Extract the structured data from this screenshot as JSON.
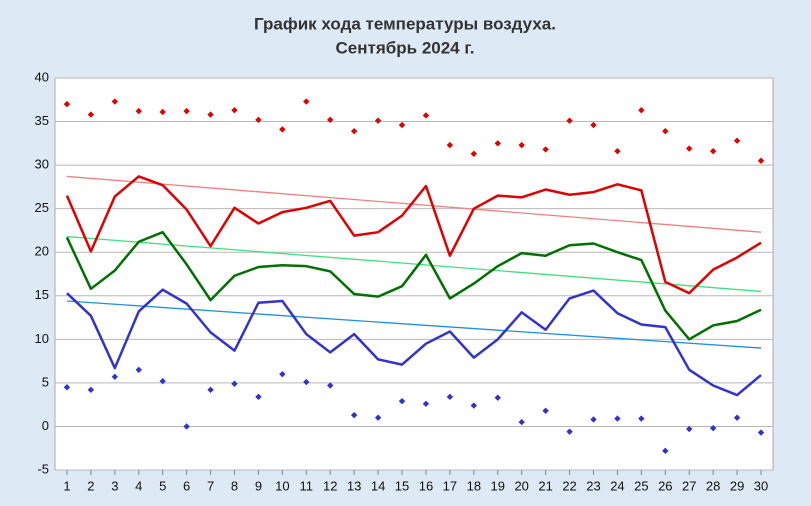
{
  "chart_data": {
    "type": "line",
    "title": [
      "График хода температуры воздуха.",
      "Сентябрь 2024 г."
    ],
    "x": [
      1,
      2,
      3,
      4,
      5,
      6,
      7,
      8,
      9,
      10,
      11,
      12,
      13,
      14,
      15,
      16,
      17,
      18,
      19,
      20,
      21,
      22,
      23,
      24,
      25,
      26,
      27,
      28,
      29,
      30
    ],
    "xlim": [
      0.5,
      30.5
    ],
    "ylim": [
      -5,
      40
    ],
    "yticks": [
      -5,
      0,
      5,
      10,
      15,
      20,
      25,
      30,
      35,
      40
    ],
    "grid": true,
    "series": [
      {
        "kind": "line",
        "color": "#e00000",
        "values": [
          26.5,
          20.1,
          26.4,
          28.7,
          27.7,
          24.9,
          20.7,
          25.1,
          23.3,
          24.6,
          25.1,
          25.9,
          21.9,
          22.3,
          24.2,
          27.6,
          19.6,
          25.0,
          26.5,
          26.3,
          27.2,
          26.6,
          26.9,
          27.8,
          27.1,
          16.6,
          15.3,
          18.0,
          19.4,
          21.1
        ]
      },
      {
        "kind": "line",
        "color": "#007000",
        "values": [
          21.7,
          15.8,
          17.9,
          21.2,
          22.3,
          18.6,
          14.5,
          17.3,
          18.3,
          18.5,
          18.4,
          17.8,
          15.2,
          14.9,
          16.1,
          19.7,
          14.7,
          16.4,
          18.4,
          19.9,
          19.6,
          20.8,
          21.0,
          20.0,
          19.1,
          13.3,
          10.0,
          11.6,
          12.1,
          13.4
        ]
      },
      {
        "kind": "line",
        "color": "#3333cc",
        "values": [
          15.3,
          12.7,
          6.7,
          13.2,
          15.7,
          14.1,
          10.8,
          8.7,
          14.2,
          14.4,
          10.6,
          8.5,
          10.6,
          7.7,
          7.1,
          9.5,
          10.9,
          7.9,
          10.0,
          13.1,
          11.1,
          14.7,
          15.6,
          13.0,
          11.7,
          11.4,
          6.5,
          4.7,
          3.6,
          5.9
        ]
      },
      {
        "kind": "points",
        "color": "#e00000",
        "values": [
          37.0,
          35.8,
          37.3,
          36.2,
          36.1,
          36.2,
          35.8,
          36.3,
          35.2,
          34.1,
          37.3,
          35.2,
          33.9,
          35.1,
          34.6,
          35.7,
          32.3,
          31.3,
          32.5,
          32.3,
          31.8,
          35.1,
          34.6,
          31.6,
          36.3,
          33.9,
          31.9,
          31.6,
          32.8,
          30.5
        ]
      },
      {
        "kind": "points",
        "color": "#3333cc",
        "values": [
          4.5,
          4.2,
          5.7,
          6.5,
          5.2,
          0,
          4.2,
          4.9,
          3.4,
          6.0,
          5.1,
          4.7,
          1.3,
          1.0,
          2.9,
          2.6,
          3.4,
          2.4,
          3.3,
          0.5,
          1.8,
          -0.6,
          0.8,
          0.9,
          0.9,
          -2.8,
          -0.3,
          -0.2,
          1.0,
          -0.7
        ]
      },
      {
        "kind": "trend",
        "color": "#f08080",
        "x": [
          1,
          30
        ],
        "values": [
          28.7,
          22.3
        ]
      },
      {
        "kind": "trend",
        "color": "#40e080",
        "x": [
          1,
          30
        ],
        "values": [
          21.8,
          15.5
        ]
      },
      {
        "kind": "trend",
        "color": "#2090e0",
        "x": [
          1,
          30
        ],
        "values": [
          14.4,
          9.0
        ]
      }
    ]
  }
}
